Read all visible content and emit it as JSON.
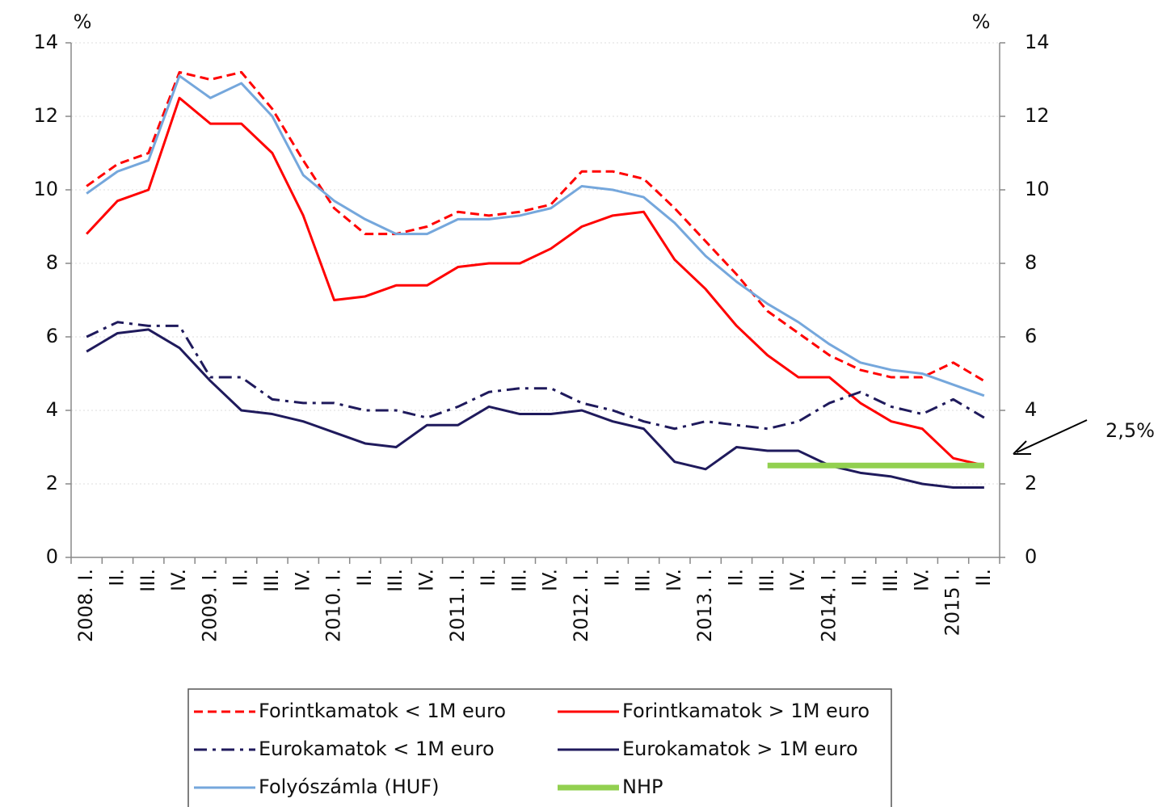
{
  "chart_data": {
    "type": "line",
    "ylabel": "%",
    "y2label": "%",
    "annotations": [
      "2,5%"
    ],
    "categories": [
      "2008. I.",
      "II.",
      "III.",
      "IV.",
      "2009. I.",
      "II.",
      "III.",
      "IV.",
      "2010. I.",
      "II.",
      "III.",
      "IV.",
      "2011. I.",
      "II.",
      "III.",
      "IV.",
      "2012. I.",
      "II.",
      "III.",
      "IV.",
      "2013. I.",
      "II.",
      "III.",
      "IV.",
      "2014. I.",
      "II.",
      "III.",
      "IV.",
      "2015 I.",
      "II."
    ],
    "series": [
      {
        "name": "Forintkamatok < 1M euro",
        "color": "#ff0000",
        "dash": "dashed",
        "values": [
          10.1,
          10.7,
          11.0,
          13.2,
          13.0,
          13.2,
          12.2,
          10.8,
          9.5,
          8.8,
          8.8,
          9.0,
          9.4,
          9.3,
          9.4,
          9.6,
          10.5,
          10.5,
          10.3,
          9.5,
          8.6,
          7.7,
          6.7,
          6.1,
          5.5,
          5.1,
          4.9,
          4.9,
          5.3,
          4.8
        ]
      },
      {
        "name": "Forintkamatok > 1M euro",
        "color": "#ff0000",
        "dash": "solid",
        "values": [
          8.8,
          9.7,
          10.0,
          12.5,
          11.8,
          11.8,
          11.0,
          9.3,
          7.0,
          7.1,
          7.4,
          7.4,
          7.9,
          8.0,
          8.0,
          8.4,
          9.0,
          9.3,
          9.4,
          8.1,
          7.3,
          6.3,
          5.5,
          4.9,
          4.9,
          4.2,
          3.7,
          3.5,
          2.7,
          2.5
        ]
      },
      {
        "name": "Eurokamatok < 1M euro",
        "color": "#1f1a5c",
        "dash": "dashdot",
        "values": [
          6.0,
          6.4,
          6.3,
          6.3,
          4.9,
          4.9,
          4.3,
          4.2,
          4.2,
          4.0,
          4.0,
          3.8,
          4.1,
          4.5,
          4.6,
          4.6,
          4.2,
          4.0,
          3.7,
          3.5,
          3.7,
          3.6,
          3.5,
          3.7,
          4.2,
          4.5,
          4.1,
          3.9,
          4.3,
          3.8
        ]
      },
      {
        "name": "Eurokamatok > 1M euro",
        "color": "#1f1a5c",
        "dash": "solid",
        "values": [
          5.6,
          6.1,
          6.2,
          5.7,
          4.8,
          4.0,
          3.9,
          3.7,
          3.4,
          3.1,
          3.0,
          3.6,
          3.6,
          4.1,
          3.9,
          3.9,
          4.0,
          3.7,
          3.5,
          2.6,
          2.4,
          3.0,
          2.9,
          2.9,
          2.5,
          2.3,
          2.2,
          2.0,
          1.9,
          1.9
        ]
      },
      {
        "name": "Folyószámla (HUF)",
        "color": "#75a7dc",
        "dash": "solid",
        "values": [
          9.9,
          10.5,
          10.8,
          13.1,
          12.5,
          12.9,
          12.0,
          10.4,
          9.7,
          9.2,
          8.8,
          8.8,
          9.2,
          9.2,
          9.3,
          9.5,
          10.1,
          10.0,
          9.8,
          9.1,
          8.2,
          7.5,
          6.9,
          6.4,
          5.8,
          5.3,
          5.1,
          5.0,
          4.7,
          4.4
        ]
      },
      {
        "name": "NHP",
        "color": "#92d050",
        "dash": "thick",
        "values": [
          null,
          null,
          null,
          null,
          null,
          null,
          null,
          null,
          null,
          null,
          null,
          null,
          null,
          null,
          null,
          null,
          null,
          null,
          null,
          null,
          null,
          null,
          2.5,
          2.5,
          2.5,
          2.5,
          2.5,
          2.5,
          2.5,
          2.5
        ]
      }
    ],
    "ylim": [
      0,
      14
    ],
    "yticks": [
      0,
      2,
      4,
      6,
      8,
      10,
      12,
      14
    ],
    "y2lim": [
      0,
      14
    ],
    "y2ticks": [
      0,
      2,
      4,
      6,
      8,
      10,
      12,
      14
    ],
    "grid": true,
    "legend": "bottom"
  }
}
